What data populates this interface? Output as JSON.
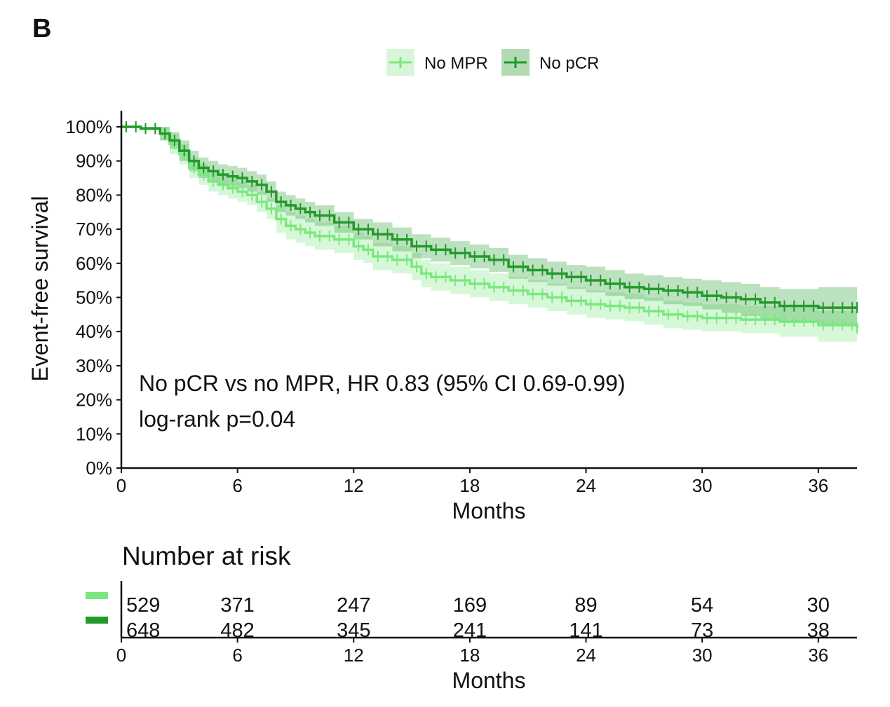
{
  "panel_label": "B",
  "colors": {
    "no_mpr": "#7be87f",
    "no_pcr": "#229a2a"
  },
  "chart_data": {
    "type": "line",
    "subtype": "kaplan-meier",
    "xlabel": "Months",
    "ylabel": "Event-free survival",
    "xlim": [
      0,
      38
    ],
    "ylim": [
      0,
      100
    ],
    "xticks": [
      0,
      6,
      12,
      18,
      24,
      30,
      36
    ],
    "yticks": [
      "0%",
      "10%",
      "20%",
      "30%",
      "40%",
      "50%",
      "60%",
      "70%",
      "80%",
      "90%",
      "100%"
    ],
    "legend": [
      "No MPR",
      "No pCR"
    ],
    "legend_position": "top-center",
    "annotation_line1": "No pCR vs no MPR, HR 0.83 (95% CI 0.69-0.99)",
    "annotation_line2": "log-rank p=0.04",
    "series": [
      {
        "name": "No MPR",
        "color": "#7be87f",
        "x": [
          0,
          1,
          2,
          2.5,
          3,
          3.5,
          4,
          4.5,
          5,
          5.5,
          6,
          6.5,
          7,
          7.5,
          8,
          8.5,
          9,
          9.5,
          10,
          11,
          12,
          12.5,
          13,
          14,
          15,
          15.5,
          16,
          17,
          18,
          19,
          20,
          21,
          22,
          23,
          24,
          25,
          26,
          27,
          28,
          29,
          30,
          32,
          34,
          36,
          38
        ],
        "y": [
          100,
          99.5,
          98,
          95,
          92,
          88,
          86,
          84,
          83,
          82,
          81,
          80,
          78,
          76,
          73,
          71,
          70,
          69,
          68,
          67,
          65,
          64,
          62,
          61,
          59,
          57,
          56,
          55,
          54,
          53,
          52,
          51,
          50,
          49,
          48,
          47.5,
          47,
          46,
          45,
          44.5,
          44,
          43.5,
          43,
          42,
          41
        ],
        "ci_upper": [
          100,
          100,
          100,
          98,
          95,
          91,
          89,
          87,
          86,
          85,
          84,
          83,
          81,
          79,
          77,
          75,
          74,
          73,
          72,
          71,
          69,
          68,
          66,
          65,
          63,
          61,
          60,
          59,
          58,
          57,
          56,
          55,
          54,
          53,
          52,
          51.5,
          51,
          50,
          49,
          48.5,
          48,
          47.5,
          47,
          46,
          46
        ],
        "ci_lower": [
          100,
          99,
          96,
          92,
          89,
          85,
          83,
          81,
          80,
          79,
          78,
          77,
          75,
          73,
          69,
          67,
          66,
          65,
          64,
          63,
          61,
          60,
          58,
          57,
          55,
          53,
          52,
          51,
          50,
          49,
          48,
          47,
          46,
          45,
          44,
          43.5,
          43,
          42,
          41,
          40.5,
          40,
          39.5,
          38.5,
          37,
          35
        ],
        "at_risk": [
          529,
          371,
          247,
          169,
          89,
          54,
          30
        ]
      },
      {
        "name": "No pCR",
        "color": "#229a2a",
        "x": [
          0,
          1,
          2,
          2.5,
          3,
          3.5,
          4,
          4.5,
          5,
          5.5,
          6,
          6.5,
          7,
          7.5,
          8,
          8.5,
          9,
          9.5,
          10,
          11,
          12,
          13,
          14,
          15,
          16,
          17,
          18,
          19,
          20,
          21,
          22,
          23,
          24,
          25,
          26,
          27,
          28,
          29,
          30,
          31,
          32,
          33,
          34,
          36,
          38
        ],
        "y": [
          100,
          99.5,
          98,
          96,
          93,
          90,
          88,
          87,
          86,
          85.5,
          85,
          84,
          83,
          81,
          78,
          77,
          76,
          75,
          74,
          72,
          70,
          68.5,
          67,
          65,
          64,
          63,
          62,
          61,
          59,
          58,
          57,
          56,
          55,
          54,
          53,
          52.5,
          52,
          51.5,
          50.5,
          50,
          49.5,
          48.5,
          47.5,
          47,
          47
        ],
        "ci_upper": [
          100,
          100,
          100,
          98.5,
          96,
          93,
          91,
          90,
          89,
          88.5,
          88,
          87,
          86,
          84,
          81,
          80,
          79,
          78,
          77,
          75,
          73,
          72,
          70.5,
          68.5,
          67.5,
          66.5,
          65.5,
          64.5,
          62.5,
          61.5,
          60.5,
          59.5,
          59,
          58,
          57,
          56.5,
          56,
          55.5,
          55,
          54.5,
          54,
          53,
          52.5,
          53,
          53
        ],
        "ci_lower": [
          100,
          99,
          96,
          93.5,
          90,
          87,
          85,
          84,
          83,
          82.5,
          82,
          81,
          80,
          78,
          75,
          74,
          73,
          72,
          71,
          69,
          67,
          65,
          63.5,
          61.5,
          60.5,
          59.5,
          58.5,
          57.5,
          55.5,
          54.5,
          53.5,
          52.5,
          51.5,
          50.5,
          49.5,
          49,
          48,
          47.5,
          46.5,
          45.5,
          44.5,
          43.5,
          42.5,
          41.5,
          41
        ],
        "at_risk": [
          648,
          482,
          345,
          241,
          141,
          73,
          38
        ]
      }
    ]
  },
  "risk_table": {
    "title": "Number at risk",
    "xlabel": "Months",
    "xticks": [
      0,
      6,
      12,
      18,
      24,
      30,
      36
    ]
  }
}
